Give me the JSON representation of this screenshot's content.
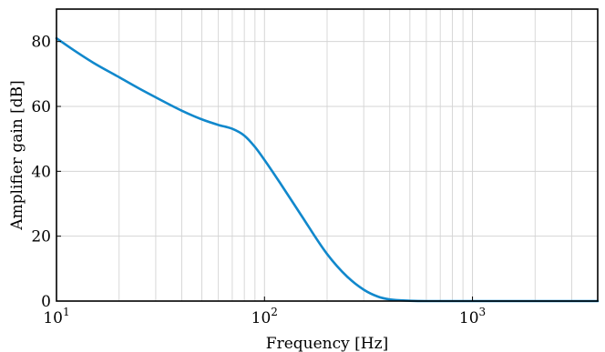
{
  "chart_data": {
    "type": "line",
    "title": "",
    "xlabel": "Frequency [Hz]",
    "ylabel": "Amplifier gain [dB]",
    "xscale": "log",
    "xlim": [
      10,
      4000
    ],
    "ylim": [
      0,
      90
    ],
    "grid": true,
    "legend": "none",
    "x_ticks": [
      {
        "base": "10",
        "exp": "1",
        "value": 10
      },
      {
        "base": "10",
        "exp": "2",
        "value": 100
      },
      {
        "base": "10",
        "exp": "3",
        "value": 1000
      }
    ],
    "y_ticks": [
      {
        "label": "0",
        "value": 0
      },
      {
        "label": "20",
        "value": 20
      },
      {
        "label": "40",
        "value": 40
      },
      {
        "label": "60",
        "value": 60
      },
      {
        "label": "80",
        "value": 80
      }
    ],
    "series": [
      {
        "name": "",
        "color": "#1188cc",
        "x": [
          10,
          12,
          15,
          20,
          25,
          30,
          40,
          50,
          60,
          70,
          80,
          90,
          100,
          120,
          150,
          200,
          250,
          300,
          350,
          400,
          500,
          600,
          800,
          1000,
          1500,
          2000,
          3000,
          4000
        ],
        "y": [
          81,
          77.5,
          73.5,
          69,
          65.5,
          62.8,
          58.7,
          56,
          54.3,
          53.1,
          51,
          47.5,
          43.5,
          36,
          26.5,
          14.5,
          7.5,
          3.5,
          1.4,
          0.5,
          0.1,
          0,
          0,
          0,
          0,
          0,
          0,
          0
        ]
      }
    ]
  },
  "colors": {
    "grid": "#d4d4d4",
    "axis": "#000000",
    "line": "#1188cc"
  }
}
